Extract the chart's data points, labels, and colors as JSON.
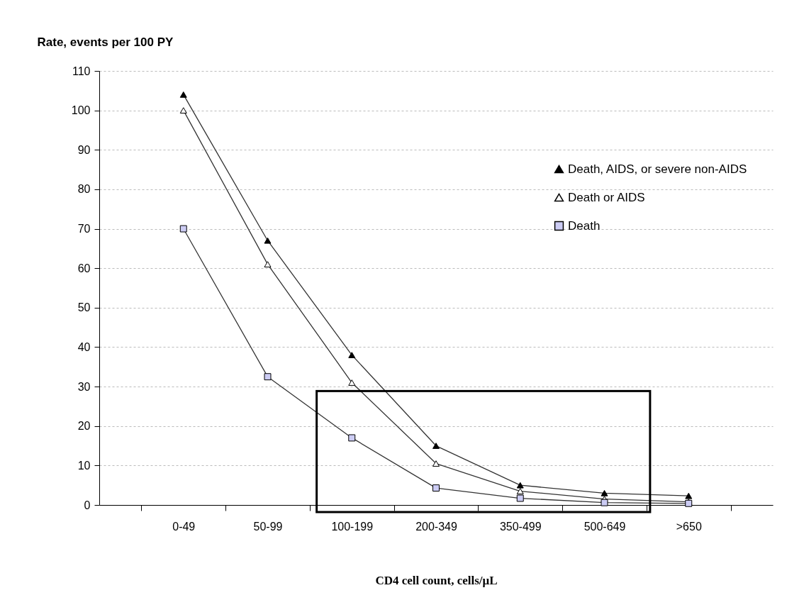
{
  "chart_data": {
    "type": "line",
    "ylabel": "Rate, events per 100 PY",
    "xlabel": "CD4 cell count, cells/μL",
    "categories": [
      "0-49",
      "50-99",
      "100-199",
      "200-349",
      "350-499",
      "500-649",
      ">650"
    ],
    "series": [
      {
        "name": "Death, AIDS, or severe non-AIDS",
        "color": "#000000",
        "marker": "triangle",
        "values": [
          104,
          67,
          38,
          15,
          5,
          3,
          2.3
        ]
      },
      {
        "name": "Death or AIDS",
        "color": "#ffffff",
        "marker": "triangle",
        "values": [
          100,
          61,
          31,
          10.5,
          3.5,
          1.5,
          0.8
        ]
      },
      {
        "name": "Death",
        "color": "#ccccf4",
        "marker": "square",
        "values": [
          70,
          32.5,
          17,
          4.3,
          1.7,
          0.6,
          0.4
        ]
      }
    ],
    "ylim": [
      0,
      110
    ],
    "yticks": [
      0,
      10,
      20,
      30,
      40,
      50,
      60,
      70,
      80,
      90,
      100,
      110
    ],
    "grid": "y",
    "legend": "right",
    "line_style": "solid"
  }
}
